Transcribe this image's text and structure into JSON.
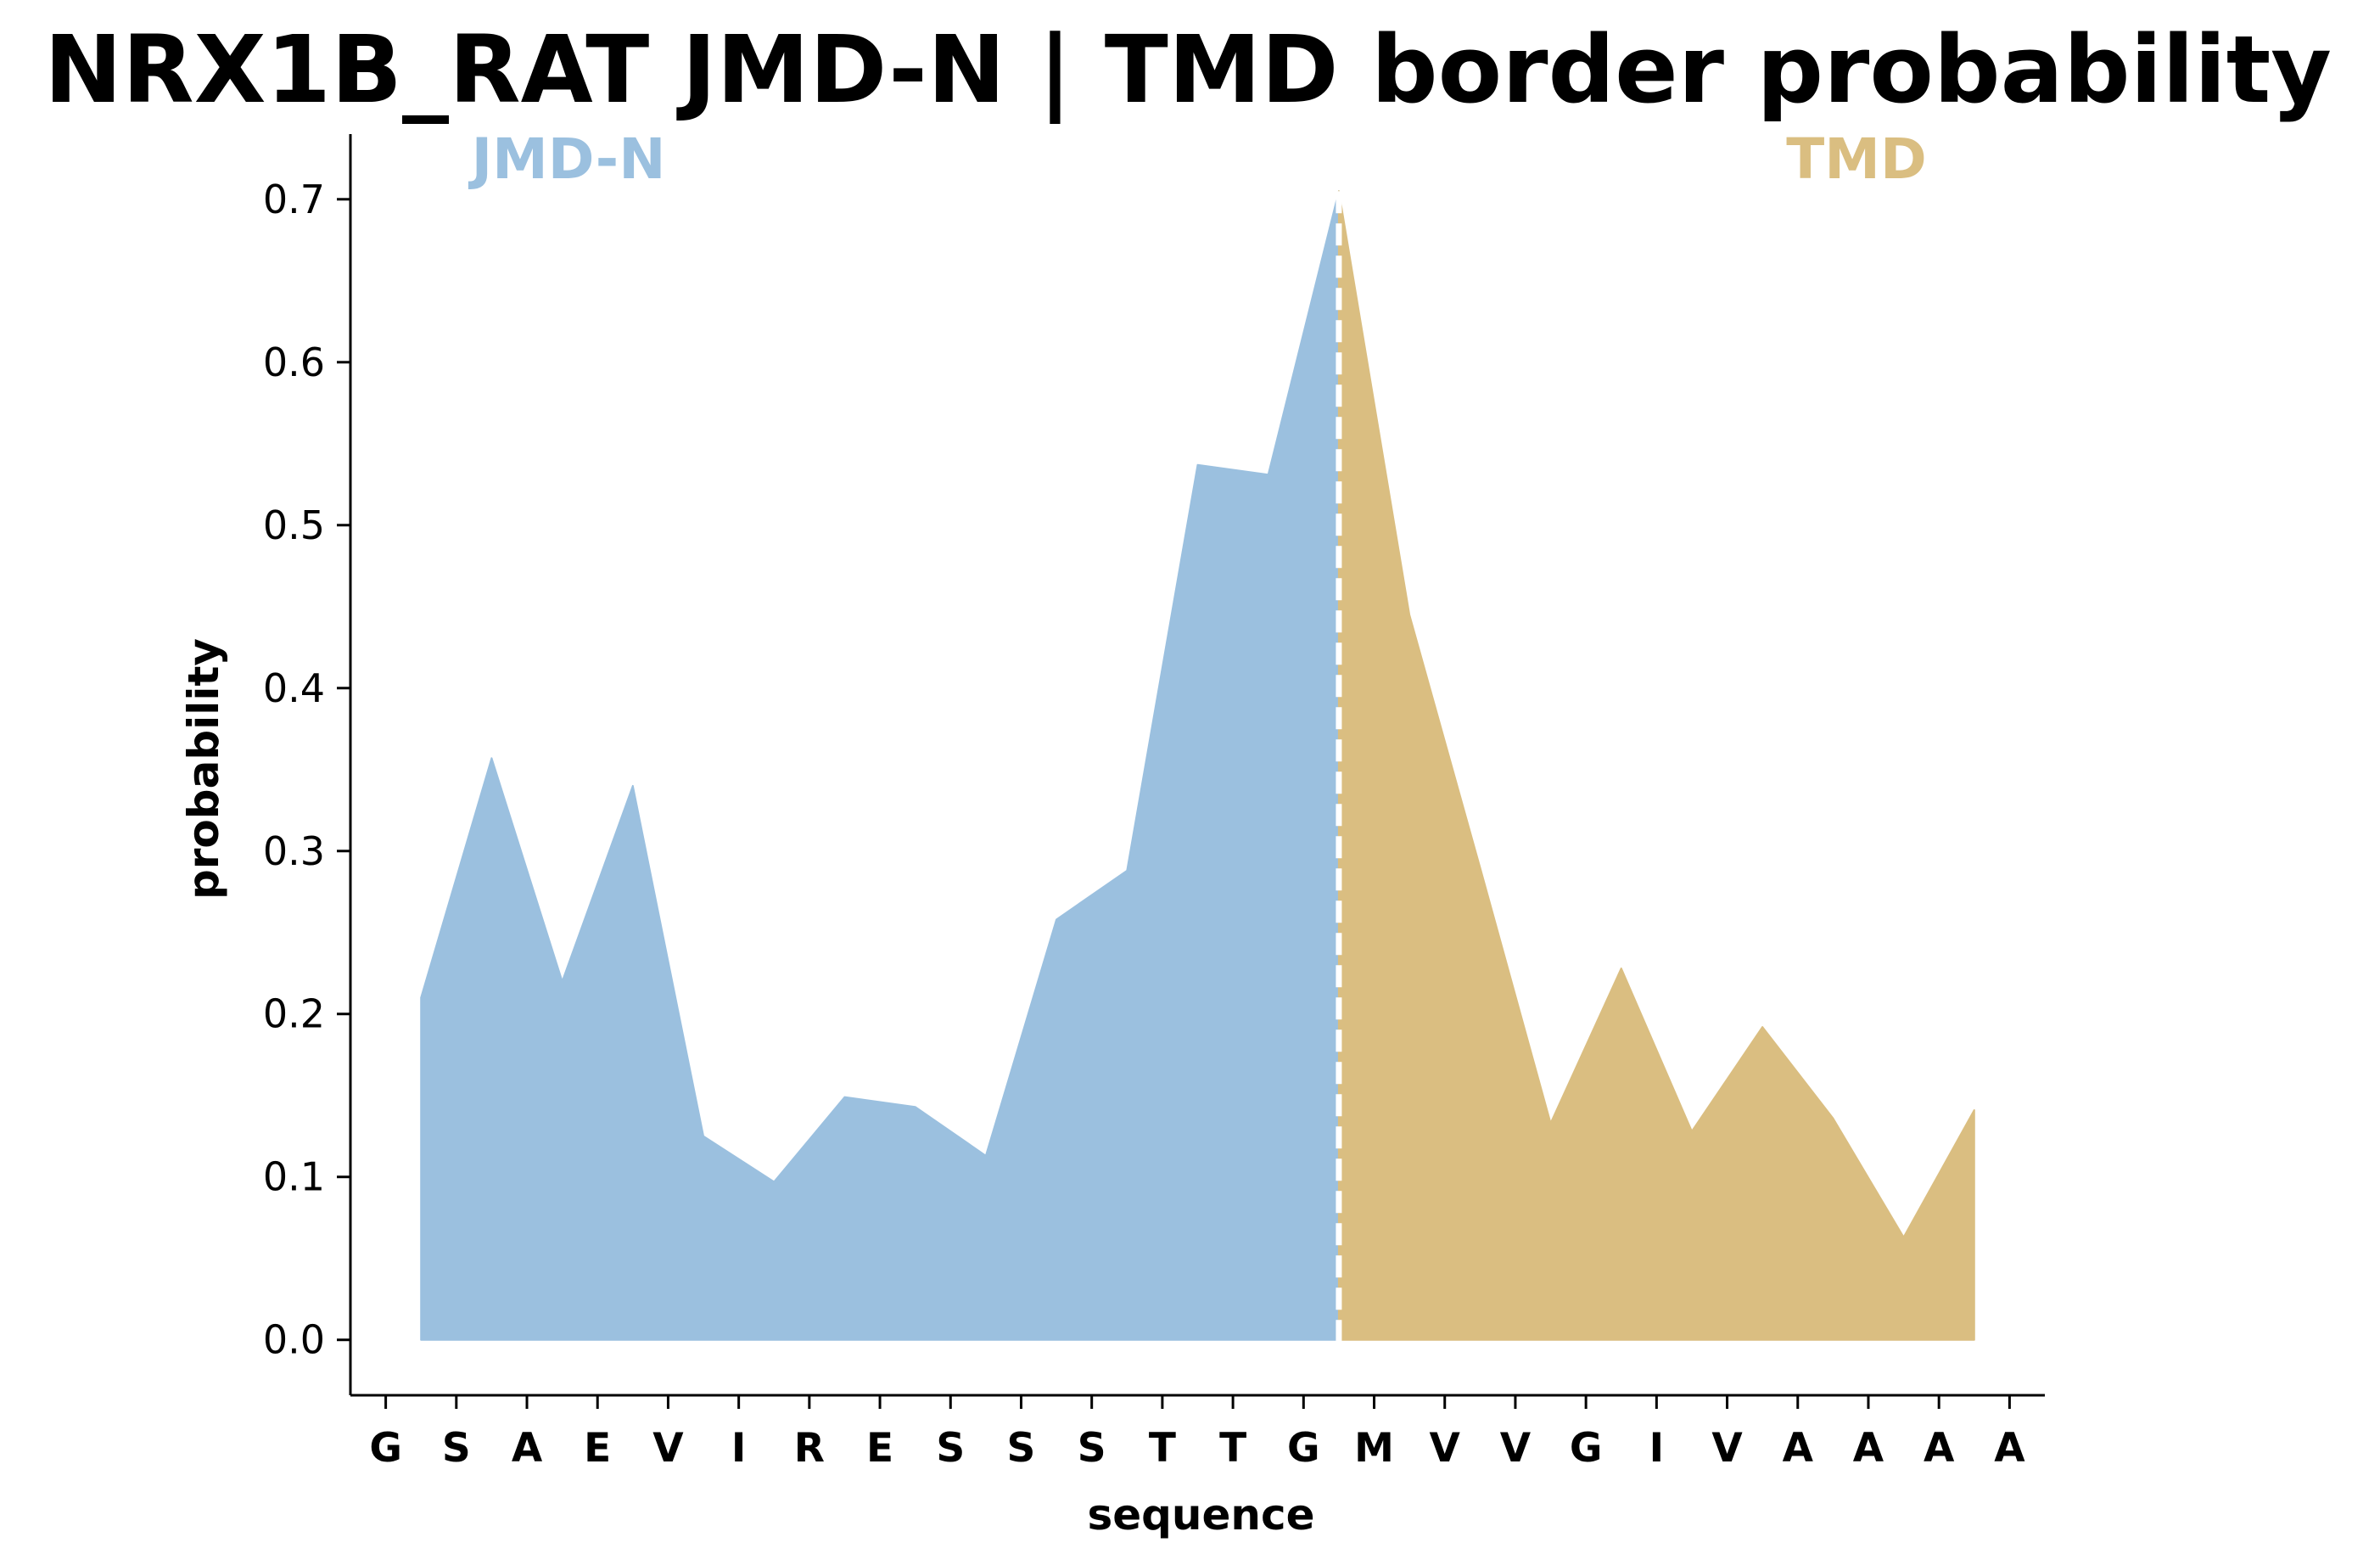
{
  "chart_data": {
    "type": "area",
    "title": "NRX1B_RAT JMD-N | TMD border probability",
    "xlabel": "sequence",
    "ylabel": "probability",
    "ylim": [
      -0.034,
      0.74
    ],
    "yticks": [
      "0.0",
      "0.1",
      "0.2",
      "0.3",
      "0.4",
      "0.5",
      "0.6",
      "0.7"
    ],
    "categories": [
      "G",
      "S",
      "A",
      "E",
      "V",
      "I",
      "R",
      "E",
      "S",
      "S",
      "S",
      "T",
      "T",
      "G",
      "M",
      "V",
      "V",
      "G",
      "I",
      "V",
      "A",
      "A",
      "A",
      "A"
    ],
    "grid": false,
    "border_between": [
      "G",
      "M"
    ],
    "series": [
      {
        "name": "JMD-N",
        "color": "#9bc0df",
        "x": [
          0.5,
          1.5,
          2.5,
          3.5,
          4.5,
          5.5,
          6.5,
          7.5,
          8.5,
          9.5,
          10.5,
          11.5,
          12.5,
          13.5
        ],
        "values": [
          0.21,
          0.357,
          0.22,
          0.34,
          0.125,
          0.097,
          0.149,
          0.143,
          0.113,
          0.258,
          0.288,
          0.537,
          0.531,
          0.705
        ]
      },
      {
        "name": "TMD",
        "color": "#dabe81",
        "x": [
          13.5,
          14.5,
          15.5,
          16.5,
          17.5,
          18.5,
          19.5,
          20.5,
          21.5,
          22.5
        ],
        "values": [
          0.705,
          0.445,
          0.29,
          0.133,
          0.228,
          0.128,
          0.192,
          0.136,
          0.063,
          0.141
        ]
      }
    ]
  }
}
